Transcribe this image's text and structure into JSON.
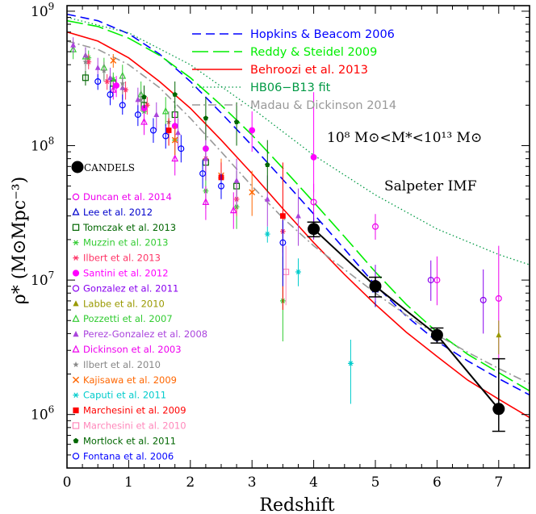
{
  "chart_data": {
    "type": "scatter",
    "title": "",
    "xlabel": "Redshift",
    "ylabel": "ρ* (M⊙Mpc⁻³)",
    "xlim": [
      0,
      7.5
    ],
    "ylim": [
      400000,
      1100000000
    ],
    "yscale": "log",
    "x_ticks": [
      "0",
      "1",
      "2",
      "3",
      "4",
      "5",
      "6",
      "7"
    ],
    "y_ticks": [
      {
        "value": 1000000,
        "base": "10",
        "exp": "6"
      },
      {
        "value": 10000000,
        "base": "10",
        "exp": "7"
      },
      {
        "value": 100000000,
        "base": "10",
        "exp": "8"
      },
      {
        "value": 1000000000,
        "base": "10",
        "exp": "9"
      }
    ],
    "annotations": {
      "mass_range": "10⁸ M⊙<M*<10¹³ M⊙",
      "imf": "Salpeter IMF"
    },
    "models": [
      {
        "name": "Hopkins & Beacom 2006",
        "color": "#0000ff",
        "dash": "dashed",
        "x": [
          0,
          0.5,
          1,
          1.5,
          2,
          2.5,
          3,
          3.5,
          4,
          4.5,
          5,
          5.5,
          6,
          6.5,
          7,
          7.5
        ],
        "y": [
          950000000,
          850000000,
          680000000,
          480000000,
          300000000,
          175000000,
          100000000,
          56000000,
          31000000,
          17000000,
          9200000,
          5400000,
          3500000,
          2500000,
          1850000,
          1400000
        ]
      },
      {
        "name": "Reddy & Steidel 2009",
        "color": "#00ee00",
        "dash": "longdash",
        "x": [
          0,
          0.5,
          1,
          1.5,
          2,
          2.5,
          3,
          3.5,
          4,
          4.5,
          5,
          5.5,
          6,
          6.5,
          7,
          7.5
        ],
        "y": [
          850000000,
          770000000,
          630000000,
          470000000,
          320000000,
          200000000,
          120000000,
          68000000,
          38000000,
          21000000,
          11500000,
          6600000,
          4100000,
          2800000,
          2050000,
          1500000
        ]
      },
      {
        "name": "Behroozi et al. 2013",
        "color": "#ff0000",
        "dash": "solid",
        "x": [
          0,
          0.5,
          1,
          1.5,
          2,
          2.5,
          3,
          3.5,
          4,
          4.5,
          5,
          5.5,
          6,
          6.5,
          7,
          7.5
        ],
        "y": [
          700000000,
          600000000,
          450000000,
          300000000,
          190000000,
          110000000,
          62000000,
          34000000,
          19000000,
          11000000,
          6600000,
          4100000,
          2700000,
          1800000,
          1300000,
          950000
        ]
      },
      {
        "name": "HB06−B13 fit",
        "color": "#009944",
        "dash": "dotted",
        "x": [
          0,
          1,
          2,
          3,
          4,
          5,
          6,
          7,
          7.5
        ],
        "y": [
          900000000,
          690000000,
          400000000,
          190000000,
          85000000,
          43000000,
          24000000,
          15500000,
          13000000
        ]
      },
      {
        "name": "Madau & Dickinson 2014",
        "color": "#999999",
        "dash": "dashdot",
        "x": [
          0,
          0.5,
          1,
          1.5,
          2,
          2.5,
          3,
          3.5,
          4,
          4.5,
          5,
          5.5,
          6,
          6.5,
          7,
          7.5
        ],
        "y": [
          600000000,
          520000000,
          400000000,
          270000000,
          160000000,
          90000000,
          50000000,
          29000000,
          18000000,
          12000000,
          8000000,
          5500000,
          3900000,
          2900000,
          2200000,
          1700000
        ]
      }
    ],
    "candels": {
      "name": "CANDELS",
      "x": [
        4,
        5,
        6,
        7
      ],
      "y": [
        24000000,
        9000000,
        3900000,
        1100000
      ],
      "yerr_low": [
        3000000,
        1500000,
        500000,
        350000
      ],
      "yerr_high": [
        3000000,
        1500000,
        500000,
        1500000
      ]
    },
    "observations": [
      {
        "name": "Duncan et al. 2014",
        "color": "#ee00ee",
        "marker": "circle-open",
        "points": [
          [
            4,
            38000000,
            26000000,
            52000000
          ],
          [
            5,
            25000000,
            20000000,
            31000000
          ],
          [
            6,
            10000000,
            6500000,
            15000000
          ],
          [
            7,
            7300000,
            2500000,
            18000000
          ]
        ]
      },
      {
        "name": "Lee et al. 2012",
        "color": "#0000cc",
        "marker": "triangle-open",
        "points": [
          [
            4,
            25000000,
            21000000,
            29000000
          ],
          [
            5,
            8500000,
            6300000,
            11000000
          ]
        ]
      },
      {
        "name": "Tomczak et al. 2013",
        "color": "#006600",
        "marker": "square-open",
        "points": [
          [
            0.3,
            320000000,
            280000000,
            360000000
          ],
          [
            0.75,
            290000000,
            250000000,
            330000000
          ],
          [
            1.25,
            200000000,
            170000000,
            240000000
          ],
          [
            1.75,
            170000000,
            140000000,
            200000000
          ],
          [
            2.25,
            75000000,
            55000000,
            95000000
          ],
          [
            2.75,
            50000000,
            35000000,
            65000000
          ]
        ]
      },
      {
        "name": "Muzzin et al. 2013",
        "color": "#33cc33",
        "marker": "asterisk",
        "points": [
          [
            0.35,
            450000000,
            390000000,
            510000000
          ],
          [
            0.75,
            310000000,
            270000000,
            350000000
          ],
          [
            1.25,
            180000000,
            150000000,
            210000000
          ],
          [
            1.75,
            110000000,
            85000000,
            140000000
          ],
          [
            2.25,
            46000000,
            34000000,
            60000000
          ],
          [
            2.75,
            35000000,
            24000000,
            50000000
          ],
          [
            3.5,
            7000000,
            3500000,
            15000000
          ]
        ]
      },
      {
        "name": "Ilbert et al. 2013",
        "color": "#ff3366",
        "marker": "asterisk",
        "points": [
          [
            0.35,
            420000000,
            370000000,
            480000000
          ],
          [
            0.65,
            300000000,
            260000000,
            340000000
          ],
          [
            0.95,
            260000000,
            220000000,
            300000000
          ],
          [
            1.3,
            200000000,
            170000000,
            230000000
          ],
          [
            1.75,
            140000000,
            110000000,
            170000000
          ],
          [
            2.25,
            80000000,
            60000000,
            100000000
          ],
          [
            2.75,
            40000000,
            30000000,
            55000000
          ],
          [
            3.5,
            23000000,
            16000000,
            32000000
          ]
        ]
      },
      {
        "name": "Santini et al. 2012",
        "color": "#ff00ff",
        "marker": "circle-filled",
        "points": [
          [
            0.8,
            280000000,
            230000000,
            330000000
          ],
          [
            1.25,
            190000000,
            150000000,
            230000000
          ],
          [
            1.75,
            140000000,
            100000000,
            180000000
          ],
          [
            2.25,
            95000000,
            65000000,
            140000000
          ],
          [
            3,
            130000000,
            90000000,
            180000000
          ],
          [
            4,
            82000000,
            45000000,
            250000000
          ]
        ]
      },
      {
        "name": "Gonzalez et al. 2011",
        "color": "#8800ee",
        "marker": "circle-open",
        "points": [
          [
            4,
            25000000,
            20000000,
            31000000
          ],
          [
            5,
            9500000,
            7000000,
            13000000
          ],
          [
            5.9,
            10000000,
            7000000,
            14000000
          ],
          [
            6.75,
            7100000,
            4000000,
            12000000
          ]
        ]
      },
      {
        "name": "Labbe et al. 2010",
        "color": "#999900",
        "marker": "triangle-filled",
        "points": [
          [
            7,
            3900000,
            2800000,
            5000000
          ]
        ]
      },
      {
        "name": "Pozzetti et al. 2007",
        "color": "#33cc33",
        "marker": "triangle-open",
        "points": [
          [
            0.1,
            520000000,
            440000000,
            600000000
          ],
          [
            0.3,
            460000000,
            390000000,
            540000000
          ],
          [
            0.6,
            380000000,
            310000000,
            450000000
          ],
          [
            0.9,
            330000000,
            270000000,
            400000000
          ],
          [
            1.2,
            240000000,
            190000000,
            300000000
          ],
          [
            1.6,
            180000000,
            140000000,
            230000000
          ]
        ]
      },
      {
        "name": "Perez-Gonzalez et al. 2008",
        "color": "#aa44dd",
        "marker": "triangle-filled",
        "points": [
          [
            0.1,
            560000000,
            490000000,
            640000000
          ],
          [
            0.3,
            470000000,
            400000000,
            540000000
          ],
          [
            0.5,
            380000000,
            320000000,
            450000000
          ],
          [
            0.7,
            320000000,
            270000000,
            380000000
          ],
          [
            0.9,
            270000000,
            220000000,
            320000000
          ],
          [
            1.15,
            220000000,
            180000000,
            270000000
          ],
          [
            1.45,
            170000000,
            130000000,
            210000000
          ],
          [
            1.8,
            125000000,
            95000000,
            160000000
          ],
          [
            2.25,
            80000000,
            55000000,
            110000000
          ],
          [
            2.75,
            55000000,
            35000000,
            80000000
          ],
          [
            3.25,
            40000000,
            25000000,
            60000000
          ],
          [
            3.75,
            30000000,
            18000000,
            48000000
          ]
        ]
      },
      {
        "name": "Dickinson et al. 2003",
        "color": "#ee00ee",
        "marker": "triangle-open",
        "points": [
          [
            0.75,
            260000000,
            220000000,
            300000000
          ],
          [
            1.25,
            150000000,
            120000000,
            190000000
          ],
          [
            1.75,
            80000000,
            60000000,
            110000000
          ],
          [
            2.25,
            38000000,
            28000000,
            50000000
          ],
          [
            2.7,
            33000000,
            24000000,
            45000000
          ]
        ]
      },
      {
        "name": "Ilbert et al. 2010",
        "color": "#888888",
        "marker": "star",
        "points": [
          [
            0.3,
            420000000,
            360000000,
            480000000
          ],
          [
            0.6,
            360000000,
            300000000,
            420000000
          ],
          [
            0.9,
            290000000,
            240000000,
            340000000
          ],
          [
            1.2,
            220000000,
            180000000,
            260000000
          ],
          [
            1.65,
            150000000,
            120000000,
            180000000
          ]
        ]
      },
      {
        "name": "Kajisawa et al. 2009",
        "color": "#ff6600",
        "marker": "cross",
        "points": [
          [
            0.75,
            430000000,
            380000000,
            480000000
          ],
          [
            1.75,
            110000000,
            85000000,
            140000000
          ],
          [
            2.5,
            60000000,
            45000000,
            80000000
          ],
          [
            3,
            45000000,
            30000000,
            65000000
          ]
        ]
      },
      {
        "name": "Caputi et al. 2011",
        "color": "#00cccc",
        "marker": "asterisk",
        "points": [
          [
            3.25,
            22000000,
            19000000,
            25000000
          ],
          [
            3.75,
            11500000,
            9000000,
            14500000
          ],
          [
            4.6,
            2400000,
            1200000,
            3600000
          ]
        ]
      },
      {
        "name": "Marchesini et al. 2009",
        "color": "#ff0000",
        "marker": "square-filled",
        "points": [
          [
            1.65,
            130000000,
            100000000,
            160000000
          ],
          [
            2.5,
            58000000,
            42000000,
            75000000
          ],
          [
            3.5,
            30000000,
            6000000,
            75000000
          ]
        ]
      },
      {
        "name": "Marchesini et al. 2010",
        "color": "#ff88bb",
        "marker": "square-open",
        "points": [
          [
            3.55,
            11500000,
            6500000,
            18000000
          ]
        ]
      },
      {
        "name": "Mortlock et al. 2011",
        "color": "#006600",
        "marker": "pentagon-filled",
        "points": [
          [
            1.25,
            230000000,
            190000000,
            280000000
          ],
          [
            1.75,
            240000000,
            190000000,
            300000000
          ],
          [
            2.25,
            160000000,
            110000000,
            230000000
          ],
          [
            2.75,
            150000000,
            100000000,
            210000000
          ],
          [
            3.25,
            72000000,
            45000000,
            110000000
          ]
        ]
      },
      {
        "name": "Fontana et al. 2006",
        "color": "#0000ff",
        "marker": "circle-open",
        "points": [
          [
            0.5,
            300000000,
            260000000,
            340000000
          ],
          [
            0.7,
            240000000,
            200000000,
            280000000
          ],
          [
            0.9,
            200000000,
            170000000,
            240000000
          ],
          [
            1.15,
            170000000,
            140000000,
            200000000
          ],
          [
            1.4,
            130000000,
            105000000,
            160000000
          ],
          [
            1.6,
            118000000,
            95000000,
            145000000
          ],
          [
            1.85,
            95000000,
            75000000,
            120000000
          ],
          [
            2.2,
            62000000,
            48000000,
            78000000
          ],
          [
            2.5,
            50000000,
            40000000,
            62000000
          ],
          [
            3.5,
            19000000,
            9000000,
            28000000
          ]
        ]
      }
    ]
  }
}
